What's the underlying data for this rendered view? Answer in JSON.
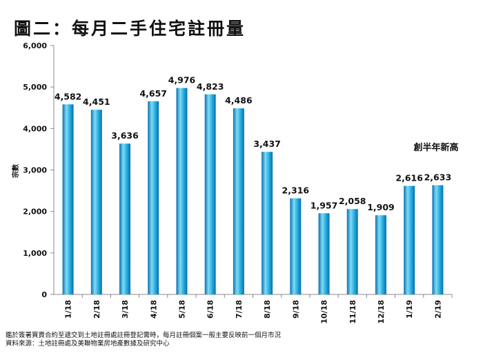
{
  "title": "圖二：每月二手住宅註冊量",
  "chart_data": {
    "type": "bar",
    "title": "圖二：每月二手住宅註冊量",
    "xlabel": "",
    "ylabel": "宗數",
    "ylim": [
      0,
      6000
    ],
    "yticks": [
      "0",
      "1,000",
      "2,000",
      "3,000",
      "4,000",
      "5,000",
      "6,000"
    ],
    "categories": [
      "1/18",
      "2/18",
      "3/18",
      "4/18",
      "5/18",
      "6/18",
      "7/18",
      "8/18",
      "9/18",
      "10/18",
      "11/18",
      "12/18",
      "1/19",
      "2/19"
    ],
    "values": [
      4582,
      4451,
      3636,
      4657,
      4976,
      4823,
      4486,
      3437,
      2316,
      1957,
      2058,
      1909,
      2616,
      2633
    ],
    "labels": [
      "4,582",
      "4,451",
      "3,636",
      "4,657",
      "4,976",
      "4,823",
      "4,486",
      "3,437",
      "2,316",
      "1,957",
      "2,058",
      "1,909",
      "2,616",
      "2,633"
    ],
    "annotation": "創半年新高",
    "grid": false,
    "colors": {
      "bar_dark": "#0a6fb0",
      "bar_light": "#7fdcf5",
      "bar_mid": "#21a8dd"
    }
  },
  "notes": [
    "鑑於簽署買賣合約至遞交到土地註冊處註冊登記需時，每月註冊個案一般主要反映前一個月市況",
    "資料來源：土地註冊處及美聯物業房地產數據及研究中心"
  ]
}
